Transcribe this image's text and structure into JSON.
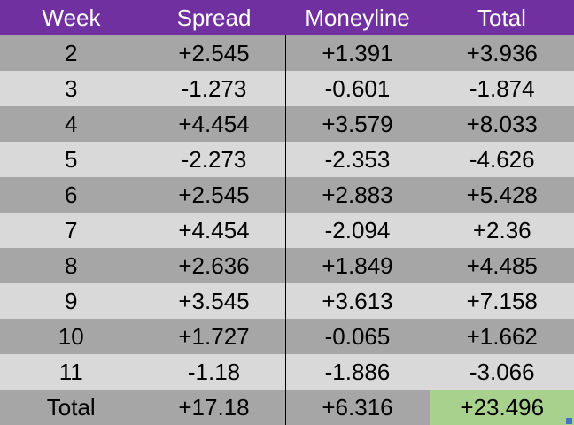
{
  "table": {
    "headers": [
      "Week",
      "Spread",
      "Moneyline",
      "Total"
    ],
    "rows": [
      [
        "2",
        "+2.545",
        "+1.391",
        "+3.936"
      ],
      [
        "3",
        "-1.273",
        "-0.601",
        "-1.874"
      ],
      [
        "4",
        "+4.454",
        "+3.579",
        "+8.033"
      ],
      [
        "5",
        "-2.273",
        "-2.353",
        "-4.626"
      ],
      [
        "6",
        "+2.545",
        "+2.883",
        "+5.428"
      ],
      [
        "7",
        "+4.454",
        "-2.094",
        "+2.36"
      ],
      [
        "8",
        "+2.636",
        "+1.849",
        "+4.485"
      ],
      [
        "9",
        "+3.545",
        "+3.613",
        "+7.158"
      ],
      [
        "10",
        "+1.727",
        "-0.065",
        "+1.662"
      ],
      [
        "11",
        "-1.18",
        "-1.886",
        "-3.066"
      ]
    ],
    "totals": [
      "Total",
      "+17.18",
      "+6.316",
      "+23.496"
    ]
  },
  "colors": {
    "header_bg": "#7030a0",
    "row_dark": "#a6a6a6",
    "row_light": "#d9d9d9",
    "total_highlight": "#a9d18e",
    "selection_handle": "#4472c4"
  }
}
